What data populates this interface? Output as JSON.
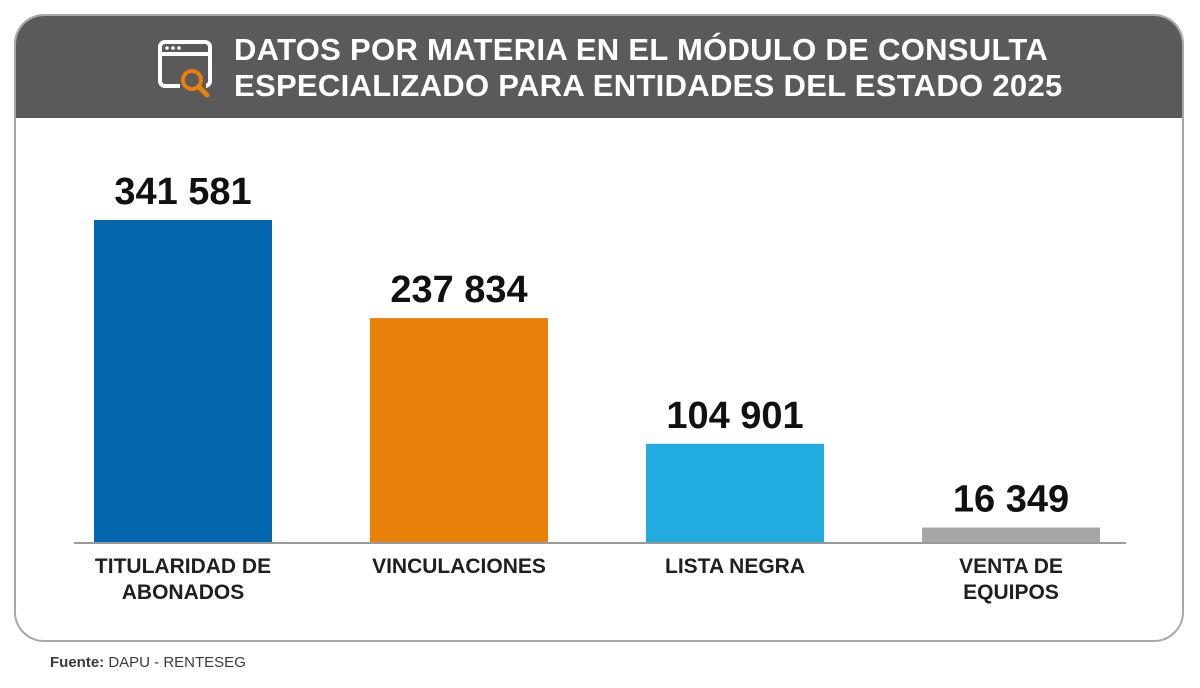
{
  "header": {
    "icon": "browser-search-icon",
    "title_line1": "DATOS POR MATERIA EN EL MÓDULO DE CONSULTA",
    "title_line2": "ESPECIALIZADO PARA ENTIDADES DEL ESTADO 2025"
  },
  "colors": {
    "header_bg": "#5a5a5a",
    "icon_accent": "#e8800a"
  },
  "chart_data": {
    "type": "bar",
    "title": "DATOS POR MATERIA EN EL MÓDULO DE CONSULTA ESPECIALIZADO PARA ENTIDADES DEL ESTADO 2025",
    "categories": [
      [
        "TITULARIDAD DE",
        "ABONADOS"
      ],
      [
        "VINCULACIONES"
      ],
      [
        "LISTA NEGRA"
      ],
      [
        "VENTA DE",
        "EQUIPOS"
      ]
    ],
    "values": [
      341581,
      237834,
      104901,
      16349
    ],
    "value_labels": [
      "341 581",
      "237 834",
      "104 901",
      "16 349"
    ],
    "colors": [
      "#0466ad",
      "#e8800a",
      "#22abde",
      "#a6a6a6"
    ],
    "ylim": [
      0,
      341581
    ],
    "grid": false,
    "legend": "none"
  },
  "source": {
    "label": "Fuente:",
    "text": " DAPU - RENTESEG"
  }
}
